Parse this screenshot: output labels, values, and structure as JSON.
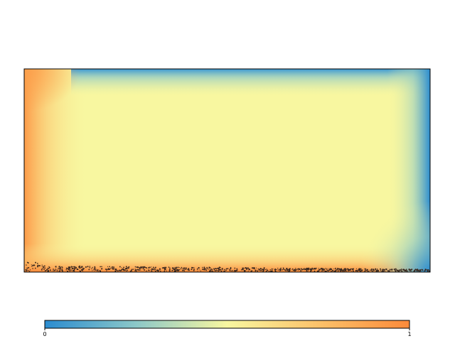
{
  "chart_data": {
    "type": "heatmap",
    "title": "",
    "xlabel": "",
    "ylabel": "",
    "description_colors": {
      "low": "#2b8cd0",
      "mid": "#f8f7a0",
      "high": "#fc8a3a",
      "frame": "#000000",
      "particles": "#3a2a20"
    },
    "colorbar": {
      "min": 0,
      "max": 1,
      "ticks": [
        {
          "value": 0,
          "label": "0"
        },
        {
          "value": 1,
          "label": "1"
        }
      ]
    },
    "field": {
      "interior_value": 0.55,
      "left_edge_value": 0.95,
      "bottom_edge_value": 0.9,
      "top_edge_value": 0.2,
      "right_edge_value": 0.1,
      "bottom_right_corner_value": 0.05,
      "has_particle_layer_bottom": true
    }
  }
}
